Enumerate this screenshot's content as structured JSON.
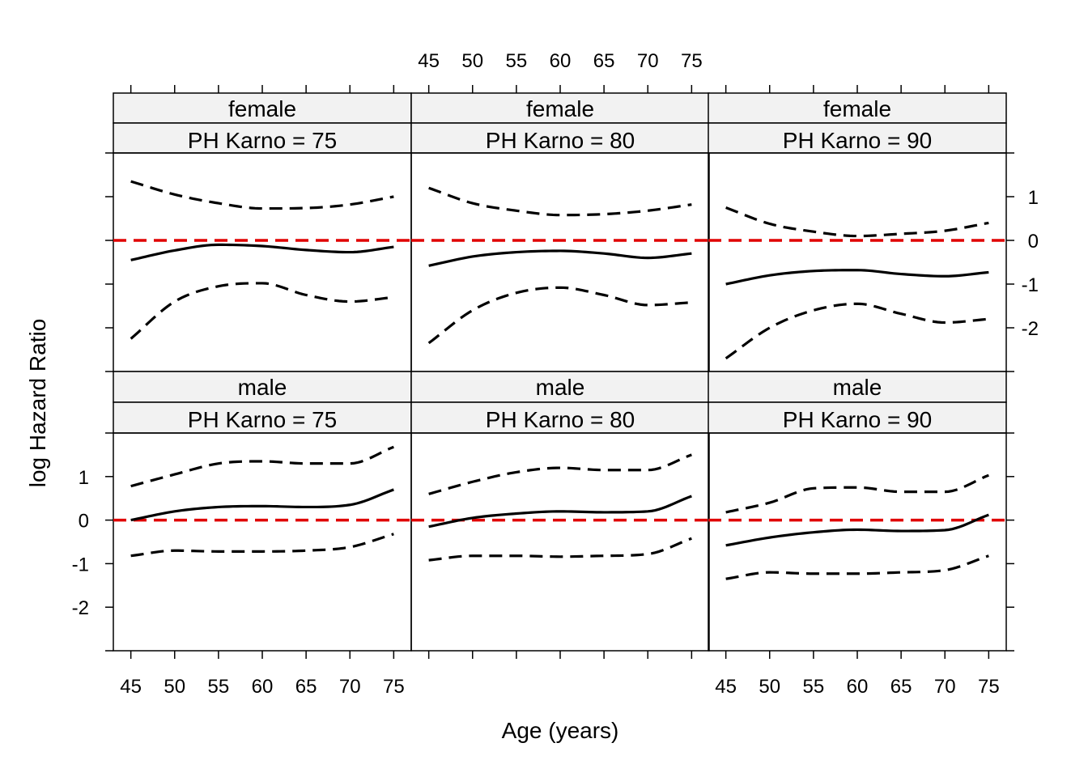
{
  "chart_data": {
    "type": "line",
    "layout": "trellis 3x2",
    "xlabel": "Age (years)",
    "ylabel": "log Hazard Ratio",
    "xlim": [
      43,
      77
    ],
    "ylim": [
      -3,
      2
    ],
    "x_ticks": [
      45,
      50,
      55,
      60,
      65,
      70,
      75
    ],
    "y_ticks": [
      -2,
      -1,
      0,
      1
    ],
    "reference_line": {
      "y": 0,
      "color": "#e00000",
      "style": "dashed"
    },
    "line_color": "#000000",
    "strip_color": "#f2f2f2",
    "x": [
      45,
      50,
      55,
      60,
      65,
      70,
      75
    ],
    "panels": [
      {
        "strip_top": "female",
        "strip_bottom": "PH Karno = 75",
        "estimate": [
          -0.45,
          -0.23,
          -0.1,
          -0.13,
          -0.22,
          -0.27,
          -0.15
        ],
        "lower": [
          -2.25,
          -1.4,
          -1.05,
          -0.98,
          -1.25,
          -1.4,
          -1.3
        ],
        "upper": [
          1.35,
          1.05,
          0.85,
          0.73,
          0.74,
          0.82,
          1.0
        ]
      },
      {
        "strip_top": "female",
        "strip_bottom": "PH Karno = 80",
        "estimate": [
          -0.58,
          -0.37,
          -0.27,
          -0.24,
          -0.3,
          -0.4,
          -0.3
        ],
        "lower": [
          -2.35,
          -1.6,
          -1.2,
          -1.08,
          -1.25,
          -1.48,
          -1.42
        ],
        "upper": [
          1.2,
          0.85,
          0.68,
          0.58,
          0.6,
          0.68,
          0.82
        ]
      },
      {
        "strip_top": "female",
        "strip_bottom": "PH Karno = 90",
        "estimate": [
          -1.0,
          -0.8,
          -0.7,
          -0.68,
          -0.77,
          -0.82,
          -0.73
        ],
        "lower": [
          -2.7,
          -2.0,
          -1.6,
          -1.45,
          -1.68,
          -1.88,
          -1.8
        ],
        "upper": [
          0.75,
          0.38,
          0.2,
          0.1,
          0.15,
          0.22,
          0.4
        ]
      },
      {
        "strip_top": "male",
        "strip_bottom": "PH Karno = 75",
        "estimate": [
          0.0,
          0.2,
          0.3,
          0.32,
          0.3,
          0.35,
          0.7
        ],
        "lower": [
          -0.82,
          -0.7,
          -0.72,
          -0.72,
          -0.7,
          -0.62,
          -0.32
        ],
        "upper": [
          0.78,
          1.05,
          1.3,
          1.35,
          1.3,
          1.3,
          1.68
        ]
      },
      {
        "strip_top": "male",
        "strip_bottom": "PH Karno = 80",
        "estimate": [
          -0.15,
          0.05,
          0.15,
          0.2,
          0.18,
          0.2,
          0.55
        ],
        "lower": [
          -0.92,
          -0.82,
          -0.82,
          -0.84,
          -0.82,
          -0.78,
          -0.42
        ],
        "upper": [
          0.6,
          0.88,
          1.1,
          1.2,
          1.15,
          1.15,
          1.5
        ]
      },
      {
        "strip_top": "male",
        "strip_bottom": "PH Karno = 90",
        "estimate": [
          -0.58,
          -0.4,
          -0.28,
          -0.22,
          -0.25,
          -0.23,
          0.12
        ],
        "lower": [
          -1.35,
          -1.2,
          -1.23,
          -1.23,
          -1.2,
          -1.15,
          -0.82
        ],
        "upper": [
          0.18,
          0.4,
          0.73,
          0.75,
          0.65,
          0.65,
          1.03
        ]
      }
    ]
  }
}
